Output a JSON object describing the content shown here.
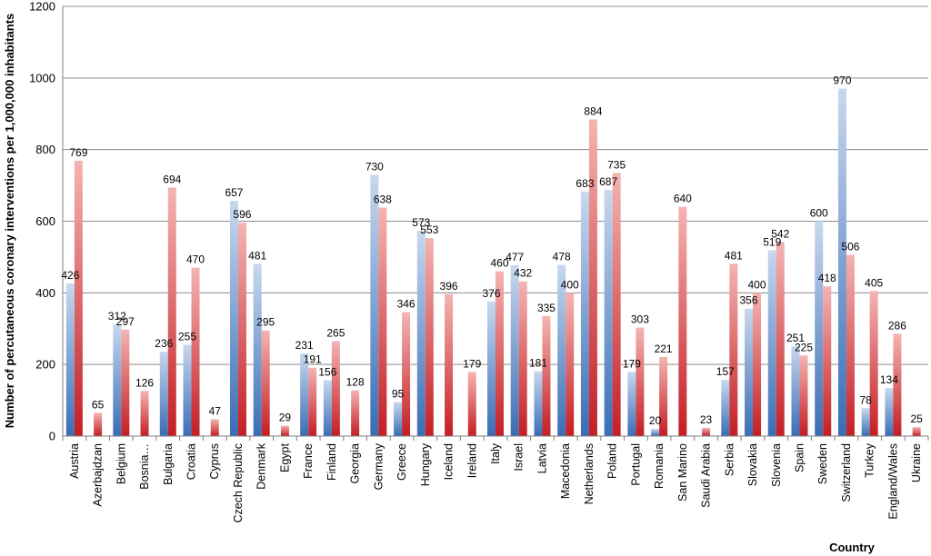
{
  "chart_data": {
    "type": "bar",
    "title": "",
    "xlabel": "Country",
    "ylabel": "Number of percutaneous coronary interventions per 1,000,000 inhabitants",
    "ylim": [
      0,
      1200
    ],
    "yticks": [
      0,
      200,
      400,
      600,
      800,
      1000,
      1200
    ],
    "grid": true,
    "legend": "none",
    "colors": {
      "blue_top": "#c8d8ee",
      "blue_bottom": "#3a6db5",
      "red_top": "#f4b4b2",
      "red_bottom": "#c41e24",
      "grid": "#8c8c8c",
      "axis": "#7f7f7f"
    },
    "categories": [
      "Austria",
      "Azerbajdzan",
      "Belgium",
      "Bosnia…",
      "Bulgaria",
      "Croatia",
      "Cyprus",
      "Czech Republic",
      "Denmark",
      "Egypt",
      "France",
      "Finland",
      "Georgia",
      "Germany",
      "Greece",
      "Hungary",
      "Iceland",
      "Ireland",
      "Italy",
      "Israel",
      "Latvia",
      "Macedonia",
      "Netherlands",
      "Poland",
      "Portugal",
      "Romania",
      "San Marino",
      "Saudi Arabia",
      "Serbia",
      "Slovakia",
      "Slovenia",
      "Spain",
      "Sweden",
      "Switzerland",
      "Turkey",
      "England/Wales",
      "Ukraine"
    ],
    "series": [
      {
        "color": "blue",
        "values": [
          426,
          null,
          312,
          null,
          236,
          255,
          null,
          657,
          481,
          null,
          231,
          156,
          null,
          730,
          95,
          573,
          null,
          null,
          376,
          477,
          181,
          478,
          683,
          687,
          179,
          20,
          null,
          null,
          157,
          356,
          519,
          251,
          600,
          970,
          78,
          134,
          null
        ]
      },
      {
        "color": "red",
        "values": [
          769,
          65,
          297,
          126,
          694,
          470,
          47,
          596,
          295,
          29,
          191,
          265,
          128,
          638,
          346,
          553,
          396,
          179,
          460,
          432,
          335,
          400,
          884,
          735,
          303,
          221,
          640,
          23,
          481,
          400,
          542,
          225,
          418,
          506,
          405,
          286,
          25
        ]
      }
    ]
  }
}
